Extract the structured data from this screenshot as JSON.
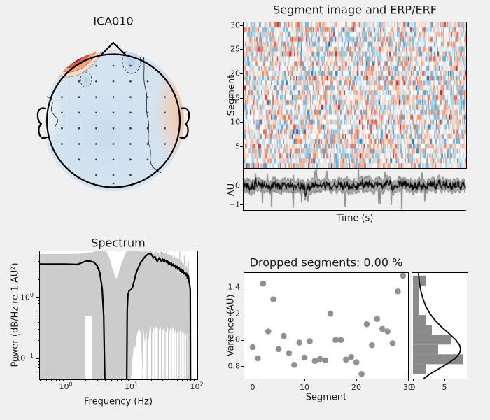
{
  "figure": {
    "background": "#f0f0f0"
  },
  "topomap": {
    "title": "ICA010",
    "colors": {
      "peak_dark_red": "#67001f",
      "ring_red": "#b2182b",
      "ring_mid_red": "#d6604d",
      "ring_salmon": "#f4a582",
      "ring_pale": "#fddbc7",
      "base_blue": "#d5e3f0",
      "deep_blue_pocket": "#aecde5",
      "warm_right": "#f2c0a0"
    }
  },
  "segment_image": {
    "title": "Segment image and ERP/ERF",
    "ylabel": "Segment",
    "yticks": [
      "5",
      "10",
      "15",
      "20",
      "25",
      "30"
    ]
  },
  "erp": {
    "ylabel": "AU",
    "xlabel": "Time (s)",
    "yticks": [
      "0",
      "−1"
    ]
  },
  "spectrum": {
    "title": "Spectrum",
    "xlabel": "Frequency (Hz)",
    "ylabel": "Power (dB/Hz re 1 AU²)",
    "xtick_exponents": [
      "0",
      "1",
      "2"
    ],
    "ytick_exponents": [
      "0",
      "−1"
    ]
  },
  "variance_scatter": {
    "title": "Dropped segments: 0.00 %",
    "xlabel": "Segment",
    "ylabel": "Variance (AU)",
    "xticks": [
      "0",
      "10",
      "20",
      "30"
    ],
    "yticks": [
      "0.8",
      "1.0",
      "1.2",
      "1.4"
    ]
  },
  "variance_hist": {
    "xticks": [
      "0",
      "5"
    ]
  },
  "chart_data": [
    {
      "type": "heatmap",
      "title": "Segment image and ERP/ERF",
      "ylabel": "Segment",
      "rows": 30,
      "columns": 200,
      "yticks": [
        5,
        10,
        15,
        20,
        25,
        30
      ],
      "value_range": [
        -1,
        1
      ],
      "colormap": "RdBu_r",
      "seed": 7,
      "description": "random-looking pale red/blue segment activity image"
    },
    {
      "type": "line",
      "name": "erp_erf_trace",
      "xlabel": "Time (s)",
      "ylabel": "AU",
      "yticks": [
        -1,
        0
      ],
      "ylim": [
        -1.31,
        0.86
      ],
      "mean_level": 0,
      "band": "mean ± sd gray band, approx ±0.4 with spikes to -1.2",
      "seed": 11
    },
    {
      "type": "line",
      "name": "spectrum",
      "title": "Spectrum",
      "xlabel": "Frequency (Hz)",
      "ylabel": "Power (dB/Hz re 1 AU²)",
      "xscale": "log",
      "yscale": "log",
      "xlim": [
        0.4,
        100
      ],
      "ylim": [
        0.045,
        5.77
      ],
      "mean": [
        [
          0.4,
          3.55
        ],
        [
          1,
          3.55
        ],
        [
          1.5,
          3.5
        ],
        [
          2,
          3.95
        ],
        [
          2.3,
          4.0
        ],
        [
          2.7,
          3.8
        ],
        [
          3,
          3.35
        ],
        [
          3.3,
          2.6
        ],
        [
          3.6,
          1.4
        ],
        [
          3.8,
          0.5
        ],
        [
          3.95,
          0.043
        ],
        [
          8.55,
          0.043
        ],
        [
          8.7,
          0.6
        ],
        [
          8.9,
          1.1
        ],
        [
          9.3,
          1.3
        ],
        [
          10,
          1.35
        ],
        [
          10.5,
          1.5
        ],
        [
          11,
          1.8
        ],
        [
          12,
          2.6
        ],
        [
          13,
          3.2
        ],
        [
          14,
          3.8
        ],
        [
          15,
          4.2
        ],
        [
          16,
          4.6
        ],
        [
          17,
          4.9
        ],
        [
          18,
          5.15
        ],
        [
          19,
          5.3
        ],
        [
          20,
          5.2
        ],
        [
          21,
          4.85
        ],
        [
          22,
          4.5
        ],
        [
          23,
          4.7
        ],
        [
          24,
          4.3
        ],
        [
          25,
          3.95
        ],
        [
          26,
          4.2
        ],
        [
          27,
          4.5
        ],
        [
          28,
          4.15
        ],
        [
          29,
          3.9
        ],
        [
          30,
          4.3
        ],
        [
          31,
          4.0
        ],
        [
          32,
          4.25
        ],
        [
          33,
          3.9
        ],
        [
          34,
          4.1
        ],
        [
          35,
          3.75
        ],
        [
          36,
          3.95
        ],
        [
          37,
          3.6
        ],
        [
          38,
          3.8
        ],
        [
          40,
          3.45
        ],
        [
          41,
          3.7
        ],
        [
          42,
          3.35
        ],
        [
          44,
          3.55
        ],
        [
          45,
          3.2
        ],
        [
          47,
          3.4
        ],
        [
          48,
          3.05
        ],
        [
          50,
          3.25
        ],
        [
          52,
          2.9
        ],
        [
          54,
          3.1
        ],
        [
          56,
          2.75
        ],
        [
          58,
          2.95
        ],
        [
          60,
          2.6
        ],
        [
          62,
          2.8
        ],
        [
          64,
          2.45
        ],
        [
          66,
          2.6
        ],
        [
          68,
          2.3
        ],
        [
          70,
          2.5
        ],
        [
          72,
          2.1
        ],
        [
          74,
          2.3
        ],
        [
          76,
          1.9
        ],
        [
          78,
          1.65
        ],
        [
          79.5,
          1.4
        ],
        [
          80,
          1.3
        ],
        [
          80.5,
          0.043
        ]
      ],
      "band_upper": [
        [
          0.4,
          5.2
        ],
        [
          1,
          5.2
        ],
        [
          1.6,
          5.25
        ],
        [
          2,
          5.45
        ],
        [
          2.6,
          5.6
        ],
        [
          3.2,
          5.9
        ],
        [
          4,
          6.2
        ],
        [
          4.6,
          4.6
        ],
        [
          5,
          3.4
        ],
        [
          5.4,
          2.6
        ],
        [
          5.8,
          2.05
        ],
        [
          6.2,
          2.2
        ],
        [
          6.6,
          2.8
        ],
        [
          7,
          3.5
        ],
        [
          7.6,
          4.4
        ],
        [
          8.2,
          5.4
        ],
        [
          8.8,
          6.2
        ],
        [
          12,
          6.2
        ],
        [
          13,
          5.6
        ],
        [
          14,
          6.0
        ],
        [
          15,
          5.5
        ],
        [
          16,
          5.9
        ],
        [
          18,
          5.6
        ],
        [
          20,
          6.0
        ],
        [
          22,
          5.5
        ],
        [
          24,
          5.8
        ],
        [
          26,
          5.3
        ],
        [
          28,
          5.6
        ],
        [
          30,
          5.8
        ],
        [
          32,
          5.2
        ],
        [
          34,
          5.5
        ],
        [
          36,
          5.0
        ],
        [
          38,
          5.3
        ],
        [
          40,
          4.8
        ],
        [
          42,
          5.0
        ],
        [
          44,
          4.5
        ],
        [
          46,
          4.8
        ],
        [
          48,
          4.3
        ],
        [
          50,
          4.6
        ],
        [
          52,
          4.1
        ],
        [
          54,
          4.4
        ],
        [
          56,
          3.9
        ],
        [
          58,
          4.2
        ],
        [
          60,
          3.7
        ],
        [
          62,
          3.9
        ],
        [
          64,
          3.4
        ],
        [
          66,
          3.7
        ],
        [
          68,
          3.2
        ],
        [
          70,
          3.5
        ],
        [
          72,
          2.9
        ],
        [
          74,
          3.1
        ],
        [
          76,
          2.6
        ],
        [
          78,
          2.2
        ],
        [
          79,
          1.9
        ],
        [
          80,
          1.5
        ],
        [
          81,
          1.0
        ]
      ],
      "band_lower": [
        [
          0.4,
          0.04
        ],
        [
          9.5,
          0.04
        ],
        [
          10,
          0.05
        ],
        [
          10.5,
          0.1
        ],
        [
          11,
          0.18
        ],
        [
          11.5,
          0.14
        ],
        [
          12,
          0.22
        ],
        [
          13,
          0.3
        ],
        [
          14,
          0.26
        ],
        [
          15,
          0.05
        ],
        [
          15.5,
          0.3
        ],
        [
          16,
          0.18
        ],
        [
          17,
          0.28
        ],
        [
          18,
          0.16
        ],
        [
          19,
          0.28
        ],
        [
          20,
          0.33
        ],
        [
          21,
          0.25
        ],
        [
          22,
          0.33
        ],
        [
          23,
          0.28
        ],
        [
          24,
          0.34
        ],
        [
          25,
          0.3
        ],
        [
          26,
          0.35
        ],
        [
          27,
          0.28
        ],
        [
          28,
          0.33
        ],
        [
          30,
          0.28
        ],
        [
          32,
          0.33
        ],
        [
          34,
          0.26
        ],
        [
          36,
          0.32
        ],
        [
          38,
          0.25
        ],
        [
          40,
          0.32
        ],
        [
          42,
          0.28
        ],
        [
          44,
          0.33
        ],
        [
          46,
          0.26
        ],
        [
          48,
          0.31
        ],
        [
          50,
          0.25
        ],
        [
          52,
          0.3
        ],
        [
          54,
          0.24
        ],
        [
          56,
          0.29
        ],
        [
          58,
          0.23
        ],
        [
          60,
          0.28
        ],
        [
          62,
          0.22
        ],
        [
          64,
          0.27
        ],
        [
          66,
          0.21
        ],
        [
          68,
          0.26
        ],
        [
          70,
          0.2
        ],
        [
          72,
          0.25
        ],
        [
          74,
          0.19
        ],
        [
          76,
          0.23
        ],
        [
          78,
          0.15
        ],
        [
          80,
          0.05
        ]
      ],
      "down_streak_freqs": [
        15,
        17.5,
        20.5,
        23,
        26,
        29,
        33,
        37,
        41,
        45,
        49,
        54,
        58,
        62,
        66,
        70,
        73,
        76,
        78
      ],
      "up_streak_freqs": [
        35,
        45,
        55,
        65,
        75
      ],
      "white_gap": {
        "f0": 1.98,
        "f1": 2.49,
        "p_top": 0.49
      }
    },
    {
      "type": "scatter",
      "name": "segment_variance",
      "title": "Dropped segments: 0.00 %",
      "xlabel": "Segment",
      "ylabel": "Variance (AU)",
      "xlim": [
        -1.6,
        30
      ],
      "ylim": [
        0.705,
        1.51
      ],
      "x": [
        0,
        1,
        2,
        3,
        4,
        5,
        6,
        7,
        8,
        9,
        10,
        11,
        12,
        13,
        14,
        15,
        16,
        17,
        18,
        19,
        20,
        21,
        22,
        23,
        24,
        25,
        26,
        27,
        28,
        29
      ],
      "y": [
        0.945,
        0.86,
        1.43,
        1.065,
        1.31,
        0.93,
        1.03,
        0.9,
        0.81,
        0.98,
        0.865,
        0.99,
        0.84,
        0.855,
        0.845,
        1.2,
        1.0,
        1.0,
        0.85,
        0.87,
        0.83,
        0.74,
        1.12,
        0.96,
        1.16,
        1.085,
        1.065,
        0.975,
        1.37,
        1.49
      ],
      "marker_color": "#8a8a8a"
    },
    {
      "type": "bar",
      "name": "variance_histogram",
      "orientation": "horizontal",
      "bin_edges": [
        0.74,
        0.815,
        0.89,
        0.965,
        1.04,
        1.115,
        1.19,
        1.265,
        1.34,
        1.415,
        1.49
      ],
      "counts": [
        2,
        8,
        4,
        6,
        3,
        2,
        1,
        1,
        1,
        2
      ],
      "bar_color": "#8a8a8a",
      "xlim": [
        0,
        8.6
      ],
      "fit_curve": [
        [
          0.705,
          1.7
        ],
        [
          0.74,
          2.7
        ],
        [
          0.78,
          4.1
        ],
        [
          0.82,
          5.5
        ],
        [
          0.86,
          6.7
        ],
        [
          0.9,
          7.4
        ],
        [
          0.93,
          7.55
        ],
        [
          0.96,
          7.4
        ],
        [
          1.0,
          6.8
        ],
        [
          1.05,
          5.7
        ],
        [
          1.1,
          4.5
        ],
        [
          1.15,
          3.5
        ],
        [
          1.2,
          2.7
        ],
        [
          1.26,
          2.0
        ],
        [
          1.32,
          1.55
        ],
        [
          1.38,
          1.22
        ],
        [
          1.44,
          1.0
        ],
        [
          1.51,
          0.88
        ]
      ]
    }
  ]
}
